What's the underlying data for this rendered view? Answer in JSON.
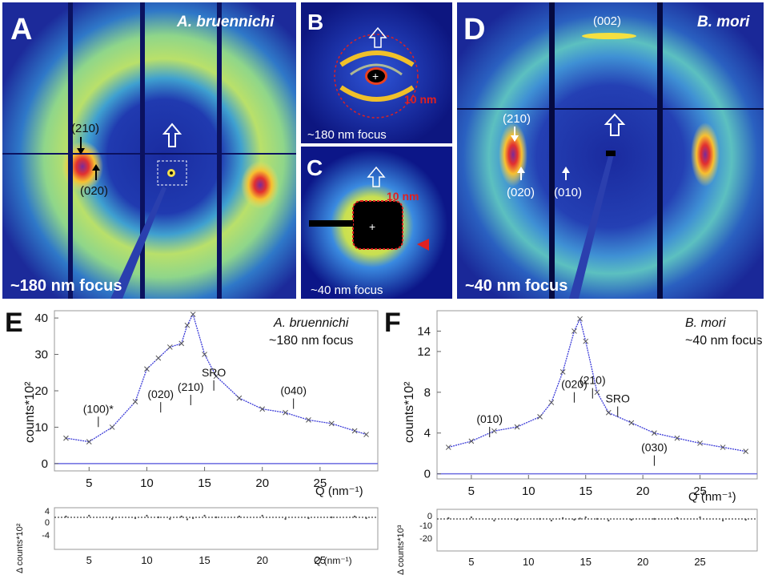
{
  "panels": {
    "A": {
      "letter": "A",
      "species": "A. bruennichi",
      "focus": "~180 nm focus",
      "peak1": "(210)",
      "peak2": "(020)"
    },
    "B": {
      "letter": "B",
      "scale": "10 nm",
      "focus": "~180 nm focus"
    },
    "C": {
      "letter": "C",
      "scale": "10 nm",
      "focus": "~40 nm focus"
    },
    "D": {
      "letter": "D",
      "species": "B. mori",
      "focus": "~40 nm focus",
      "peak_top": "(002)",
      "peak1": "(210)",
      "peak2": "(020)",
      "peak3": "(010)"
    }
  },
  "plots": {
    "E": {
      "letter": "E",
      "species": "A. bruennichi",
      "focus": "~180 nm focus",
      "ylabel": "counts*10²",
      "xlabel": "Q (nm⁻¹)",
      "resid_ylabel": "Δ counts*10²",
      "yticks": [
        "0",
        "10",
        "20",
        "30",
        "40"
      ],
      "xticks": [
        "5",
        "10",
        "15",
        "20",
        "25"
      ],
      "resid_yticks": [
        "4",
        "0",
        "-4"
      ],
      "peaks": [
        "(100)*",
        "(020)",
        "(210)",
        "SRO",
        "(040)"
      ]
    },
    "F": {
      "letter": "F",
      "species": "B. mori",
      "focus": "~40 nm focus",
      "ylabel": "counts*10²",
      "xlabel": "Q (nm⁻¹)",
      "resid_ylabel": "Δ counts*10³",
      "yticks": [
        "0",
        "4",
        "8",
        "12",
        "14"
      ],
      "yticks_all": [
        "0",
        "4",
        "8",
        "12",
        "14"
      ],
      "xticks": [
        "5",
        "10",
        "15",
        "20",
        "25"
      ],
      "resid_yticks": [
        "0",
        "-10",
        "-20"
      ],
      "peaks": [
        "(010)",
        "(020)",
        "(210)",
        "SRO",
        "(030)"
      ]
    }
  },
  "chart_data": [
    {
      "type": "scatter",
      "title": "A. bruennichi ~180 nm focus",
      "xlabel": "Q (nm⁻¹)",
      "ylabel": "counts*10²",
      "xlim": [
        2,
        30
      ],
      "ylim": [
        -2,
        42
      ],
      "x": [
        3,
        5,
        7,
        9,
        10,
        11,
        12,
        13,
        13.5,
        14,
        15,
        16,
        18,
        20,
        22,
        24,
        26,
        28,
        29
      ],
      "y": [
        7,
        6,
        10,
        17,
        26,
        29,
        32,
        33,
        38,
        41,
        30,
        24,
        18,
        15,
        14,
        12,
        11,
        9,
        8
      ],
      "peak_labels": [
        "(100)*",
        "(020)",
        "(210)",
        "SRO",
        "(040)"
      ]
    },
    {
      "type": "scatter",
      "title": "B. mori ~40 nm focus",
      "xlabel": "Q (nm⁻¹)",
      "ylabel": "counts*10²",
      "xlim": [
        2,
        30
      ],
      "ylim": [
        -0.5,
        16
      ],
      "x": [
        3,
        5,
        7,
        9,
        11,
        12,
        13,
        14,
        14.5,
        15,
        16,
        17,
        19,
        21,
        23,
        25,
        27,
        29
      ],
      "y": [
        2.6,
        3.2,
        4.2,
        4.6,
        5.6,
        7,
        10,
        14,
        15.2,
        13,
        8,
        6,
        5,
        4,
        3.5,
        3,
        2.6,
        2.2
      ],
      "peak_labels": [
        "(010)",
        "(020)",
        "(210)",
        "SRO",
        "(030)"
      ]
    }
  ]
}
